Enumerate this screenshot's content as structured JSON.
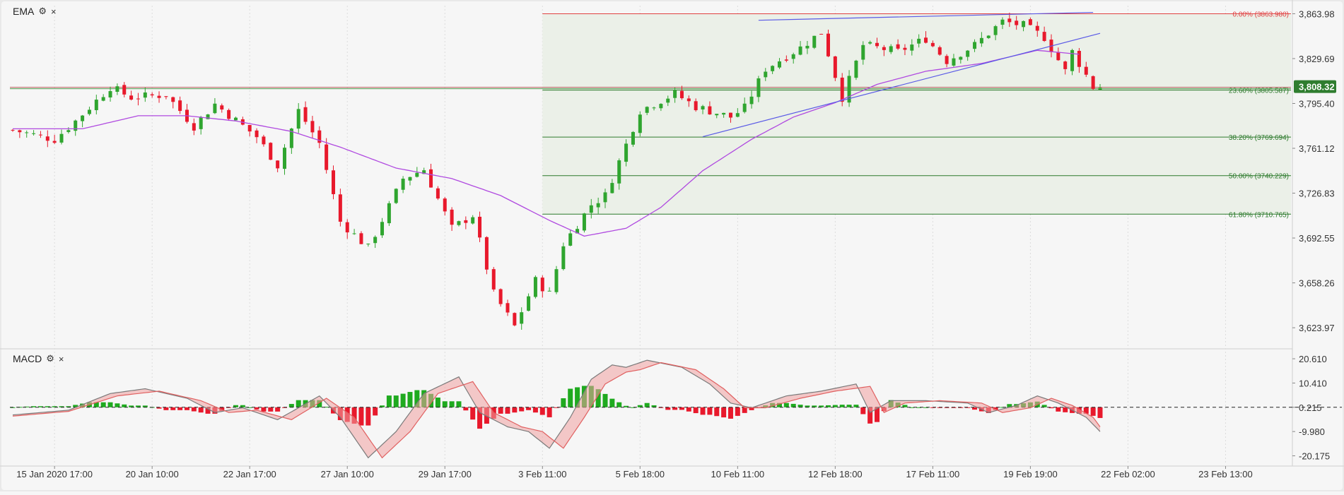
{
  "indicators": {
    "ema": {
      "label": "EMA",
      "settings_icon": "gear-icon",
      "close_icon": "close-icon",
      "settings_glyph": "⚙",
      "close_glyph": "×"
    },
    "macd": {
      "label": "MACD",
      "settings_icon": "gear-icon",
      "close_icon": "close-icon",
      "settings_glyph": "⚙",
      "close_glyph": "×"
    }
  },
  "colors": {
    "up": "#2fa52f",
    "down": "#e8192c",
    "ema_line": "#b04ae0",
    "trendline": "#5a5ae6",
    "fib_zero": "#e04040",
    "fib_level": "#2c7a2c",
    "fib_zone": "#ebf0e8",
    "price_badge": "#2f7d2f",
    "macd_line": "#7a7a7a",
    "signal_line": "#e06060",
    "hist_pos": "#1faa1f",
    "hist_neg": "#e8192c"
  },
  "chart_data": [
    {
      "type": "line",
      "subtype": "candlestick",
      "title": "",
      "series": [
        {
          "name": "EMA"
        }
      ],
      "y_ticks": [
        "3,863.98",
        "3,829.69",
        "3,795.40",
        "3,761.12",
        "3,726.83",
        "3,692.55",
        "3,658.26",
        "3,623.97"
      ],
      "ylim": [
        3610,
        3868
      ],
      "x_ticks": [
        "15 Jan 2020 17:00",
        "20 Jan 10:00",
        "22 Jan 17:00",
        "27 Jan 10:00",
        "29 Jan 17:00",
        "3 Feb 11:00",
        "5 Feb 18:00",
        "10 Feb 11:00",
        "12 Feb 18:00",
        "17 Feb 11:00",
        "19 Feb 19:00",
        "22 Feb 02:00",
        "23 Feb 13:00"
      ],
      "last_price": "3,808.32",
      "last_price_value": 3808.32,
      "anchors": [
        {
          "t": 0,
          "p": 3775
        },
        {
          "t": 6,
          "p": 3768
        },
        {
          "t": 9,
          "p": 3782
        },
        {
          "t": 14,
          "p": 3808
        },
        {
          "t": 17,
          "p": 3800
        },
        {
          "t": 22,
          "p": 3802
        },
        {
          "t": 26,
          "p": 3778
        },
        {
          "t": 29,
          "p": 3795
        },
        {
          "t": 35,
          "p": 3770
        },
        {
          "t": 38,
          "p": 3748
        },
        {
          "t": 41,
          "p": 3790
        },
        {
          "t": 44,
          "p": 3765
        },
        {
          "t": 47,
          "p": 3705
        },
        {
          "t": 51,
          "p": 3685
        },
        {
          "t": 56,
          "p": 3738
        },
        {
          "t": 59,
          "p": 3745
        },
        {
          "t": 63,
          "p": 3700
        },
        {
          "t": 66,
          "p": 3710
        },
        {
          "t": 69,
          "p": 3650
        },
        {
          "t": 72,
          "p": 3625
        },
        {
          "t": 75,
          "p": 3660
        },
        {
          "t": 77,
          "p": 3650
        },
        {
          "t": 79,
          "p": 3688
        },
        {
          "t": 83,
          "p": 3718
        },
        {
          "t": 85,
          "p": 3725
        },
        {
          "t": 90,
          "p": 3790
        },
        {
          "t": 95,
          "p": 3803
        },
        {
          "t": 98,
          "p": 3793
        },
        {
          "t": 103,
          "p": 3785
        },
        {
          "t": 105,
          "p": 3792
        },
        {
          "t": 108,
          "p": 3822
        },
        {
          "t": 113,
          "p": 3838
        },
        {
          "t": 116,
          "p": 3850
        },
        {
          "t": 119,
          "p": 3800
        },
        {
          "t": 122,
          "p": 3840
        },
        {
          "t": 127,
          "p": 3835
        },
        {
          "t": 131,
          "p": 3845
        },
        {
          "t": 134,
          "p": 3828
        },
        {
          "t": 138,
          "p": 3840
        },
        {
          "t": 142,
          "p": 3858
        },
        {
          "t": 145,
          "p": 3855
        },
        {
          "t": 148,
          "p": 3846
        },
        {
          "t": 151,
          "p": 3820
        },
        {
          "t": 152,
          "p": 3835
        },
        {
          "t": 155,
          "p": 3808
        }
      ],
      "ema_points": [
        {
          "t": 0,
          "p": 3776
        },
        {
          "t": 10,
          "p": 3776
        },
        {
          "t": 18,
          "p": 3786
        },
        {
          "t": 25,
          "p": 3786
        },
        {
          "t": 32,
          "p": 3782
        },
        {
          "t": 40,
          "p": 3774
        },
        {
          "t": 47,
          "p": 3762
        },
        {
          "t": 55,
          "p": 3746
        },
        {
          "t": 63,
          "p": 3738
        },
        {
          "t": 70,
          "p": 3725
        },
        {
          "t": 77,
          "p": 3706
        },
        {
          "t": 82,
          "p": 3694
        },
        {
          "t": 88,
          "p": 3700
        },
        {
          "t": 93,
          "p": 3716
        },
        {
          "t": 99,
          "p": 3744
        },
        {
          "t": 106,
          "p": 3768
        },
        {
          "t": 112,
          "p": 3785
        },
        {
          "t": 118,
          "p": 3796
        },
        {
          "t": 124,
          "p": 3810
        },
        {
          "t": 131,
          "p": 3820
        },
        {
          "t": 139,
          "p": 3826
        },
        {
          "t": 147,
          "p": 3836
        },
        {
          "t": 153,
          "p": 3833
        }
      ],
      "fibonacci": [
        {
          "label": "0.00% (3863.980)",
          "value": 3863.98
        },
        {
          "label": "23.60% (3805.587)",
          "value": 3805.587
        },
        {
          "label": "38.20% (3769.694)",
          "value": 3769.694
        },
        {
          "label": "50.00% (3740.229)",
          "value": 3740.229
        },
        {
          "label": "61.80% (3710.765)",
          "value": 3710.765
        }
      ],
      "fib_start_t": 76,
      "horizontal_line": 3807.2,
      "trendlines": [
        {
          "t1": 99,
          "p1": 3770,
          "t2": 156,
          "p2": 3849
        },
        {
          "t1": 107,
          "p1": 3859,
          "t2": 155,
          "p2": 3865
        }
      ]
    },
    {
      "type": "line",
      "subtype": "macd",
      "title": "",
      "series": [
        {
          "name": "MACD"
        }
      ],
      "y_ticks": [
        "20.610",
        "10.410",
        "0.215",
        "-9.980",
        "-20.175"
      ],
      "ylim": [
        -23,
        23
      ],
      "zero_line": 0.215,
      "macd_points": [
        {
          "t": 0,
          "v": -3
        },
        {
          "t": 8,
          "v": -1
        },
        {
          "t": 14,
          "v": 6
        },
        {
          "t": 19,
          "v": 8
        },
        {
          "t": 25,
          "v": 4
        },
        {
          "t": 29,
          "v": -2
        },
        {
          "t": 33,
          "v": 0
        },
        {
          "t": 38,
          "v": -5
        },
        {
          "t": 44,
          "v": 5
        },
        {
          "t": 47,
          "v": -4
        },
        {
          "t": 51,
          "v": -21
        },
        {
          "t": 55,
          "v": -10
        },
        {
          "t": 59,
          "v": 6
        },
        {
          "t": 64,
          "v": 13
        },
        {
          "t": 67,
          "v": -2
        },
        {
          "t": 71,
          "v": -8
        },
        {
          "t": 74,
          "v": -10
        },
        {
          "t": 77,
          "v": -17
        },
        {
          "t": 80,
          "v": -4
        },
        {
          "t": 83,
          "v": 12
        },
        {
          "t": 86,
          "v": 18
        },
        {
          "t": 88,
          "v": 17
        },
        {
          "t": 91,
          "v": 20
        },
        {
          "t": 96,
          "v": 17
        },
        {
          "t": 100,
          "v": 10
        },
        {
          "t": 103,
          "v": 2
        },
        {
          "t": 106,
          "v": 0
        },
        {
          "t": 111,
          "v": 5
        },
        {
          "t": 116,
          "v": 7
        },
        {
          "t": 121,
          "v": 10
        },
        {
          "t": 123,
          "v": -2
        },
        {
          "t": 126,
          "v": 3
        },
        {
          "t": 131,
          "v": 3
        },
        {
          "t": 137,
          "v": 2
        },
        {
          "t": 140,
          "v": -2
        },
        {
          "t": 144,
          "v": 1
        },
        {
          "t": 147,
          "v": 5
        },
        {
          "t": 150,
          "v": 2
        },
        {
          "t": 154,
          "v": -4
        },
        {
          "t": 156,
          "v": -10
        }
      ],
      "signal_points": [
        {
          "t": 0,
          "v": -3.5
        },
        {
          "t": 8,
          "v": -1.5
        },
        {
          "t": 15,
          "v": 5
        },
        {
          "t": 21,
          "v": 7
        },
        {
          "t": 27,
          "v": 3
        },
        {
          "t": 31,
          "v": -2
        },
        {
          "t": 35,
          "v": -1
        },
        {
          "t": 40,
          "v": -5
        },
        {
          "t": 45,
          "v": 4
        },
        {
          "t": 49,
          "v": -4
        },
        {
          "t": 53,
          "v": -21
        },
        {
          "t": 57,
          "v": -10
        },
        {
          "t": 61,
          "v": 6
        },
        {
          "t": 66,
          "v": 11
        },
        {
          "t": 69,
          "v": -2
        },
        {
          "t": 73,
          "v": -8
        },
        {
          "t": 76,
          "v": -10
        },
        {
          "t": 79,
          "v": -17
        },
        {
          "t": 82,
          "v": -4
        },
        {
          "t": 85,
          "v": 10
        },
        {
          "t": 88,
          "v": 15
        },
        {
          "t": 90,
          "v": 16
        },
        {
          "t": 93,
          "v": 19
        },
        {
          "t": 98,
          "v": 16
        },
        {
          "t": 102,
          "v": 8
        },
        {
          "t": 105,
          "v": 0
        },
        {
          "t": 108,
          "v": 0
        },
        {
          "t": 113,
          "v": 4
        },
        {
          "t": 118,
          "v": 7
        },
        {
          "t": 123,
          "v": 9
        },
        {
          "t": 125,
          "v": -2
        },
        {
          "t": 128,
          "v": 2
        },
        {
          "t": 133,
          "v": 3
        },
        {
          "t": 139,
          "v": 2
        },
        {
          "t": 142,
          "v": -2
        },
        {
          "t": 146,
          "v": 0
        },
        {
          "t": 149,
          "v": 4
        },
        {
          "t": 152,
          "v": 1
        },
        {
          "t": 155,
          "v": -4
        },
        {
          "t": 156,
          "v": -8
        }
      ]
    }
  ]
}
